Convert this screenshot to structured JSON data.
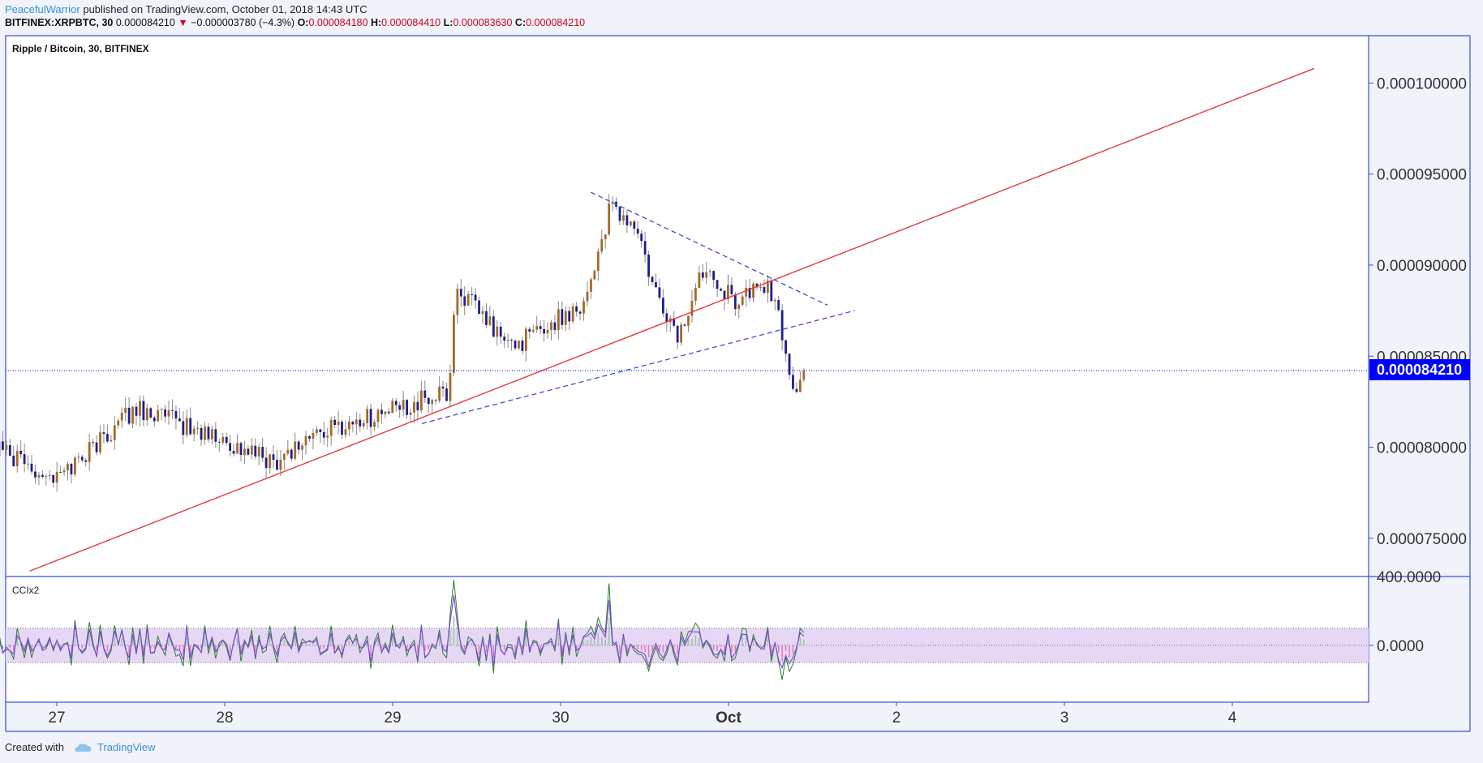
{
  "header": {
    "author": "PeacefulWarrior",
    "published": "published on TradingView.com, October 01, 2018 14:43 UTC"
  },
  "ohlc": {
    "symbol": "BITFINEX:XRPBTC, 30",
    "last": "0.000084210",
    "change": "−0.000003780 (−4.3%)",
    "o_label": "O:",
    "o": "0.000084180",
    "h_label": "H:",
    "h": "0.000084410",
    "l_label": "L:",
    "l": "0.000083630",
    "c_label": "C:",
    "c": "0.000084210"
  },
  "footer": {
    "created": "Created with",
    "brand": "TradingView"
  },
  "colors": {
    "up": "#a36a26",
    "down": "#1e1e8c",
    "trendline": "#e83a3a",
    "dashed": "#3b4fd6",
    "price_tag": "#0000ff",
    "cci_fill": "#e6d8f5",
    "cci_a": "#2d7d2d",
    "cci_b": "#7b50d6"
  },
  "chart_data": {
    "type": "candlestick",
    "title": "Ripple / Bitcoin, 30, BITFINEX",
    "symbol": "XRPBTC",
    "timeframe": "30",
    "exchange": "BITFINEX",
    "x_ticks": [
      "27",
      "28",
      "29",
      "30",
      "Oct",
      "2",
      "3",
      "4"
    ],
    "y_ticks": [
      "0.000075000",
      "0.000080000",
      "0.000085000",
      "0.000090000",
      "0.000095000",
      "0.000100000"
    ],
    "ylim": [
      7.29e-05,
      0.0001026
    ],
    "current_price": "0.000084210",
    "key_points": [
      {
        "time": "Sep 26",
        "price": 8.25e-05
      },
      {
        "time": "Sep 27 00:00",
        "price": 7.83e-05
      },
      {
        "time": "Sep 27 12:00",
        "price": 8.22e-05
      },
      {
        "time": "Sep 28 08:00",
        "price": 7.92e-05
      },
      {
        "time": "Sep 28 14:00",
        "price": 8.07e-05
      },
      {
        "time": "Sep 29 10:00",
        "price": 8.3e-05
      },
      {
        "time": "Sep 29 11:00",
        "price": 8.88e-05
      },
      {
        "time": "Sep 29 19:00",
        "price": 8.55e-05
      },
      {
        "time": "Sep 30 00:00",
        "price": 8.65e-05
      },
      {
        "time": "Sep 30 06:00",
        "price": 8.8e-05
      },
      {
        "time": "Sep 30 10:00",
        "price": 9.32e-05
      },
      {
        "time": "Sep 30 14:00",
        "price": 9.18e-05
      },
      {
        "time": "Sep 30 16:00",
        "price": 8.88e-05
      },
      {
        "time": "Sep 30 20:00",
        "price": 8.6e-05
      },
      {
        "time": "Oct 01 00:00",
        "price": 9.02e-05
      },
      {
        "time": "Oct 01 04:00",
        "price": 8.8e-05
      },
      {
        "time": "Oct 01 09:00",
        "price": 8.9e-05
      },
      {
        "time": "Oct 01 11:00",
        "price": 8.68e-05
      },
      {
        "time": "Oct 01 13:00",
        "price": 8.3e-05
      },
      {
        "time": "Oct 01 14:30",
        "price": 8.421e-05
      }
    ],
    "trendline": {
      "from": {
        "time": "Sep 26 20:00",
        "price": 7.32e-05
      },
      "to": {
        "time": "Oct 04 18:00",
        "price": 0.0001008
      }
    },
    "triangle_upper": {
      "from": {
        "time": "Sep 30 07:00",
        "price": 9.4e-05
      },
      "to": {
        "time": "Oct 01 18:00",
        "price": 8.78e-05
      }
    },
    "triangle_lower": {
      "from": {
        "time": "Sep 29 06:00",
        "price": 8.13e-05
      },
      "to": {
        "time": "Oct 01 22:00",
        "price": 8.75e-05
      }
    },
    "indicator": {
      "name": "CCIx2",
      "y_ticks": [
        "400.0000",
        "0.0000"
      ],
      "ylim": [
        -330,
        400
      ],
      "band": [
        -100,
        100
      ]
    }
  }
}
